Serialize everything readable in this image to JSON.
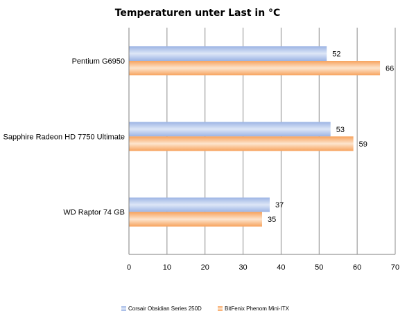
{
  "chart_data": {
    "type": "bar",
    "orientation": "horizontal",
    "title": "Temperaturen unter Last in °C",
    "categories": [
      "Pentium G6950",
      "Sapphire Radeon HD 7750 Ultimate",
      "WD Raptor 74 GB"
    ],
    "series": [
      {
        "name": "Corsair Obsidian Series 250D",
        "values": [
          52,
          53,
          37
        ],
        "color": "#a9c0ea"
      },
      {
        "name": "BitFenix Phenom  Mini-ITX",
        "values": [
          66,
          59,
          35
        ],
        "color": "#f9a86a"
      }
    ],
    "xlim": [
      0,
      70
    ],
    "xticks": [
      "0",
      "10",
      "20",
      "30",
      "40",
      "50",
      "60",
      "70"
    ],
    "grid": "vertical",
    "legend_position": "bottom"
  }
}
